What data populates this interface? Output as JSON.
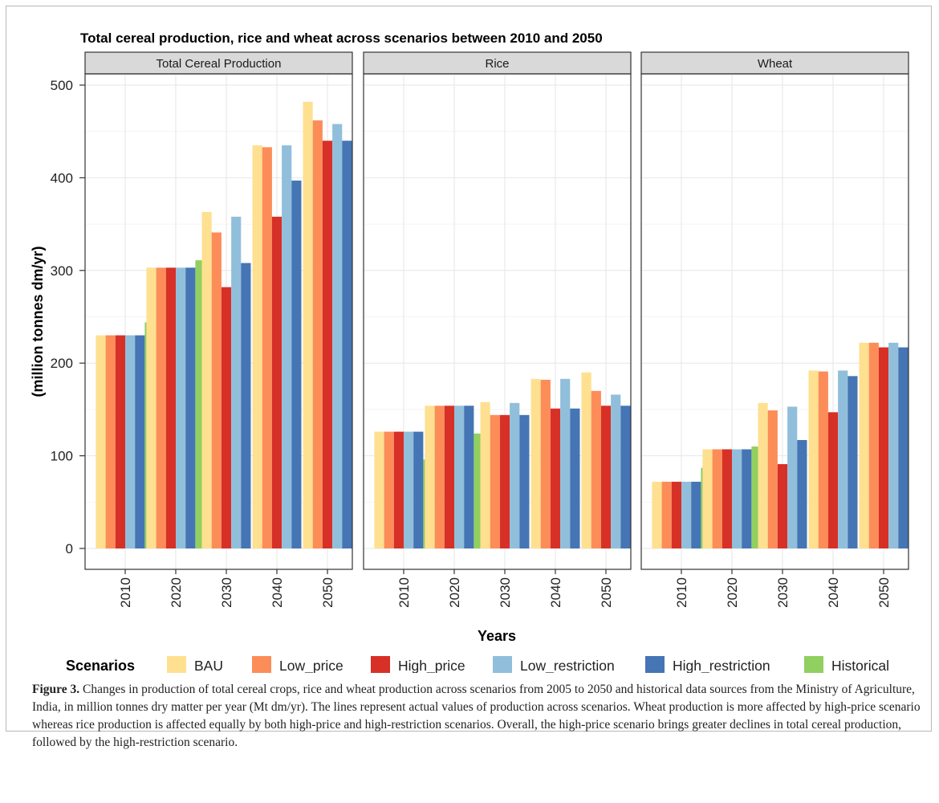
{
  "figure_caption": {
    "label": "Figure 3.",
    "text": "Changes in production of total cereal crops, rice and wheat production across scenarios from 2005 to 2050 and historical data sources from the Ministry of Agriculture, India, in million tonnes dry matter per year (Mt dm/yr). The lines represent actual values of production across scenarios. Wheat production is more affected by high-price scenario whereas rice production is affected equally by both high-price and high-restriction scenarios. Overall, the high-price scenario brings greater declines in total cereal production, followed by the high-restriction scenario."
  },
  "chart_data": {
    "type": "bar",
    "title": "Total cereal production, rice and wheat across scenarios between 2010 and 2050",
    "xlabel": "Years",
    "ylabel": "(million tonnes dm/yr)",
    "ylim": [
      0,
      500
    ],
    "yticks": [
      0,
      100,
      200,
      300,
      400,
      500
    ],
    "grid": true,
    "legend_position": "bottom",
    "legend_title": "Scenarios",
    "categories": [
      "2010",
      "2020",
      "2030",
      "2040",
      "2050"
    ],
    "series": [
      {
        "name": "BAU",
        "color": "#FEE090"
      },
      {
        "name": "Low_price",
        "color": "#FC8D59"
      },
      {
        "name": "High_price",
        "color": "#D73027"
      },
      {
        "name": "Low_restriction",
        "color": "#91BFDB"
      },
      {
        "name": "High_restriction",
        "color": "#4575B4"
      },
      {
        "name": "Historical",
        "color": "#91CF60"
      }
    ],
    "panels": [
      {
        "name": "Total Cereal Production",
        "values": {
          "BAU": [
            230,
            303,
            363,
            435,
            482
          ],
          "Low_price": [
            230,
            303,
            341,
            433,
            462
          ],
          "High_price": [
            230,
            303,
            282,
            358,
            440
          ],
          "Low_restriction": [
            230,
            303,
            358,
            435,
            458
          ],
          "High_restriction": [
            230,
            303,
            308,
            397,
            440
          ],
          "Historical": [
            244,
            311,
            null,
            null,
            null
          ]
        }
      },
      {
        "name": "Rice",
        "values": {
          "BAU": [
            126,
            154,
            158,
            183,
            190
          ],
          "Low_price": [
            126,
            154,
            144,
            182,
            170
          ],
          "High_price": [
            126,
            154,
            144,
            151,
            154
          ],
          "Low_restriction": [
            126,
            154,
            157,
            183,
            166
          ],
          "High_restriction": [
            126,
            154,
            144,
            151,
            154
          ],
          "Historical": [
            96,
            124,
            null,
            null,
            null
          ]
        }
      },
      {
        "name": "Wheat",
        "values": {
          "BAU": [
            72,
            107,
            157,
            192,
            222
          ],
          "Low_price": [
            72,
            107,
            149,
            191,
            222
          ],
          "High_price": [
            72,
            107,
            91,
            147,
            217
          ],
          "Low_restriction": [
            72,
            107,
            153,
            192,
            222
          ],
          "High_restriction": [
            72,
            107,
            117,
            186,
            217
          ],
          "Historical": [
            87,
            110,
            null,
            null,
            null
          ]
        }
      }
    ]
  }
}
